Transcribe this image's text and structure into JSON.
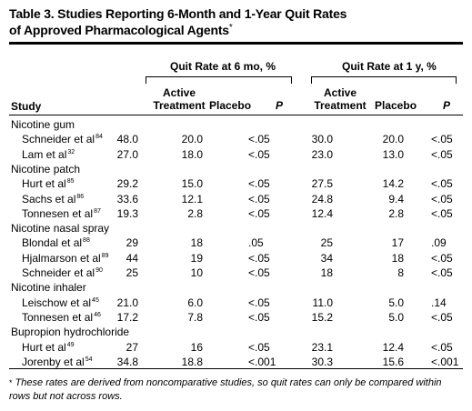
{
  "title": {
    "line1": "Table 3. Studies Reporting 6-Month and 1-Year Quit Rates",
    "line2": "of Approved Pharmacological Agents",
    "marker": "*"
  },
  "headers": {
    "group_6mo": "Quit Rate at 6 mo, %",
    "group_1y": "Quit Rate at 1 y, %",
    "study": "Study",
    "active_line1": "Active",
    "active_line2": "Treatment",
    "placebo": "Placebo",
    "p": "P"
  },
  "rows": [
    {
      "type": "category",
      "label": "Nicotine gum"
    },
    {
      "type": "study",
      "name": "Schneider et al",
      "ref": "84",
      "v6_active": "48.0",
      "v6_placebo": "20.0",
      "v6_p": "<.05",
      "v1_active": "30.0",
      "v1_placebo": "20.0",
      "v1_p": "<.05"
    },
    {
      "type": "study",
      "name": "Lam et al",
      "ref": "32",
      "v6_active": "27.0",
      "v6_placebo": "18.0",
      "v6_p": "<.05",
      "v1_active": "23.0",
      "v1_placebo": "13.0",
      "v1_p": "<.05"
    },
    {
      "type": "category",
      "label": "Nicotine patch"
    },
    {
      "type": "study",
      "name": "Hurt et al",
      "ref": "85",
      "v6_active": "29.2",
      "v6_placebo": "15.0",
      "v6_p": "<.05",
      "v1_active": "27.5",
      "v1_placebo": "14.2",
      "v1_p": "<.05"
    },
    {
      "type": "study",
      "name": "Sachs et al",
      "ref": "86",
      "v6_active": "33.6",
      "v6_placebo": "12.1",
      "v6_p": "<.05",
      "v1_active": "24.8",
      "v1_placebo": "9.4",
      "v1_p": "<.05"
    },
    {
      "type": "study",
      "name": "Tonnesen et al",
      "ref": "87",
      "v6_active": "19.3",
      "v6_placebo": "2.8",
      "v6_p": "<.05",
      "v1_active": "12.4",
      "v1_placebo": "2.8",
      "v1_p": "<.05"
    },
    {
      "type": "category",
      "label": "Nicotine nasal spray"
    },
    {
      "type": "study",
      "name": "Blondal et al",
      "ref": "88",
      "v6_active": "29",
      "v6_placebo": "18",
      "v6_p": ".05",
      "v1_active": "25",
      "v1_placebo": "17",
      "v1_p": ".09"
    },
    {
      "type": "study",
      "name": "Hjalmarson et al",
      "ref": "89",
      "v6_active": "44",
      "v6_placebo": "19",
      "v6_p": "<.05",
      "v1_active": "34",
      "v1_placebo": "18",
      "v1_p": "<.05"
    },
    {
      "type": "study",
      "name": "Schneider et al",
      "ref": "90",
      "v6_active": "25",
      "v6_placebo": "10",
      "v6_p": "<.05",
      "v1_active": "18",
      "v1_placebo": "8",
      "v1_p": "<.05"
    },
    {
      "type": "category",
      "label": "Nicotine inhaler"
    },
    {
      "type": "study",
      "name": "Leischow et al",
      "ref": "45",
      "v6_active": "21.0",
      "v6_placebo": "6.0",
      "v6_p": "<.05",
      "v1_active": "11.0",
      "v1_placebo": "5.0",
      "v1_p": ".14"
    },
    {
      "type": "study",
      "name": "Tonnesen et al",
      "ref": "46",
      "v6_active": "17.2",
      "v6_placebo": "7.8",
      "v6_p": "<.05",
      "v1_active": "15.2",
      "v1_placebo": "5.0",
      "v1_p": "<.05"
    },
    {
      "type": "category",
      "label": "Bupropion hydrochloride"
    },
    {
      "type": "study",
      "name": "Hurt et al",
      "ref": "49",
      "v6_active": "27",
      "v6_placebo": "16",
      "v6_p": "<.05",
      "v1_active": "23.1",
      "v1_placebo": "12.4",
      "v1_p": "<.05"
    },
    {
      "type": "study",
      "name": "Jorenby et al",
      "ref": "54",
      "v6_active": "34.8",
      "v6_placebo": "18.8",
      "v6_p": "<.001",
      "v1_active": "30.3",
      "v1_placebo": "15.6",
      "v1_p": "<.001"
    }
  ],
  "footnote": {
    "marker": "*",
    "text": "These rates are derived from noncomparative studies, so quit rates can only be compared within rows but not across rows."
  }
}
